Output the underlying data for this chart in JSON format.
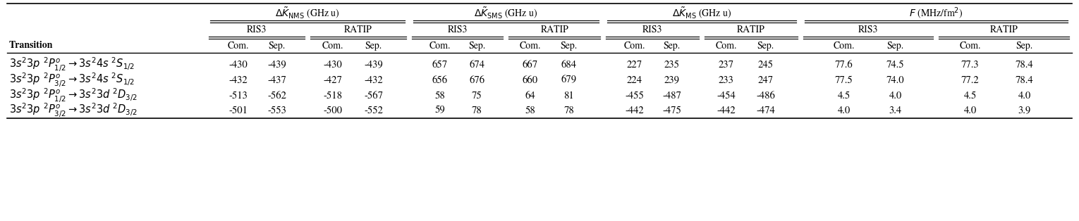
{
  "group_labels": [
    "$\\Delta \\tilde{K}_{\\mathrm{NMS}}$ (GHz u)",
    "$\\Delta \\tilde{K}_{\\mathrm{SMS}}$ (GHz u)",
    "$\\Delta \\tilde{K}_{\\mathrm{MS}}$ (GHz u)",
    "$F$ (MHz/fm$^2$)"
  ],
  "transitions_latex": [
    "$3s^23p\\ {}^2P^o_{1/2} \\rightarrow 3s^24s\\ {}^2S_{1/2}$",
    "$3s^23p\\ {}^2P^o_{3/2} \\rightarrow 3s^24s\\ {}^2S_{1/2}$",
    "$3s^23p\\ {}^2P^o_{1/2} \\rightarrow 3s^23d\\ {}^2D_{3/2}$",
    "$3s^23p\\ {}^2P^o_{3/2} \\rightarrow 3s^23d\\ {}^2D_{3/2}$"
  ],
  "data": [
    [
      "-430",
      "-439",
      "-430",
      "-439",
      "657",
      "674",
      "667",
      "684",
      "227",
      "235",
      "237",
      "245",
      "77.6",
      "74.5",
      "77.3",
      "78.4"
    ],
    [
      "-432",
      "-437",
      "-427",
      "-432",
      "656",
      "676",
      "660",
      "679",
      "224",
      "239",
      "233",
      "247",
      "77.5",
      "74.0",
      "77.2",
      "78.4"
    ],
    [
      "-513",
      "-562",
      "-518",
      "-567",
      "58",
      "75",
      "64",
      "81",
      "-455",
      "-487",
      "-454",
      "-486",
      "4.5",
      "4.0",
      "4.5",
      "4.0"
    ],
    [
      "-501",
      "-553",
      "-500",
      "-552",
      "59",
      "78",
      "58",
      "78",
      "-442",
      "-475",
      "-442",
      "-474",
      "4.0",
      "3.4",
      "4.0",
      "3.9"
    ]
  ],
  "bg_color": "#ffffff",
  "text_color": "#000000",
  "fs_data": 10.5,
  "fs_header": 10.0,
  "fs_transition": 10.5
}
